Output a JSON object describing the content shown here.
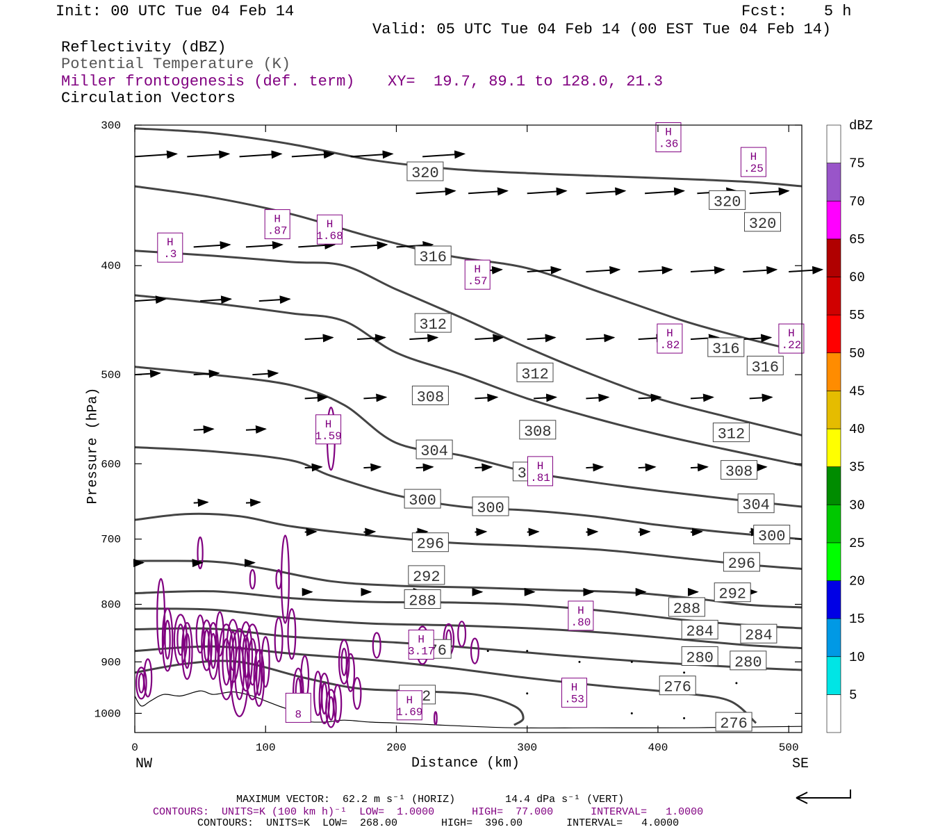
{
  "header": {
    "init": "Init: 00 UTC Tue 04 Feb 14",
    "fcst": "Fcst:    5 h",
    "valid": "Valid: 05 UTC Tue 04 Feb 14 (00 EST Tue 04 Feb 14)",
    "field1": "Reflectivity (dBZ)",
    "field2": "Potential Temperature (K)",
    "field3": "Miller frontogenesis (def. term)",
    "xy": "XY=  19.7, 89.1 to 128.0, 21.3",
    "field4": "Circulation Vectors"
  },
  "colors": {
    "theta": "#444444",
    "fronto": "#800080",
    "vector": "#000000"
  },
  "chart_data": {
    "type": "line",
    "xlabel": "Distance (km)",
    "ylabel": "Pressure (hPa)",
    "xlim": [
      0,
      510
    ],
    "ylim": [
      1040,
      300
    ],
    "y_scale": "log",
    "x_ticks": [
      0,
      100,
      200,
      300,
      400,
      500
    ],
    "x_tick_labels": [
      "0",
      "100",
      "200",
      "300",
      "400",
      "500"
    ],
    "y_ticks": [
      300,
      400,
      500,
      600,
      700,
      800,
      900,
      1000
    ],
    "y_tick_labels": [
      "300",
      "400",
      "500",
      "600",
      "700",
      "800",
      "900",
      "1000"
    ],
    "left_end_label": "NW",
    "right_end_label": "SE",
    "theta_series": [
      {
        "theta": 320,
        "points": [
          [
            0,
            302
          ],
          [
            60,
            305
          ],
          [
            120,
            312
          ],
          [
            180,
            322
          ],
          [
            240,
            328
          ],
          [
            300,
            331
          ],
          [
            360,
            333
          ],
          [
            420,
            335
          ],
          [
            470,
            337
          ],
          [
            510,
            340
          ]
        ]
      },
      {
        "theta": 316,
        "points": [
          [
            0,
            340
          ],
          [
            60,
            348
          ],
          [
            120,
            360
          ],
          [
            180,
            377
          ],
          [
            240,
            392
          ],
          [
            300,
            402
          ],
          [
            360,
            424
          ],
          [
            420,
            448
          ],
          [
            470,
            465
          ],
          [
            510,
            477
          ]
        ]
      },
      {
        "theta": 312,
        "points": [
          [
            0,
            388
          ],
          [
            60,
            392
          ],
          [
            120,
            397
          ],
          [
            160,
            400
          ],
          [
            200,
            420
          ],
          [
            250,
            445
          ],
          [
            300,
            473
          ],
          [
            350,
            500
          ],
          [
            400,
            525
          ],
          [
            450,
            544
          ],
          [
            510,
            566
          ]
        ]
      },
      {
        "theta": 308,
        "points": [
          [
            0,
            425
          ],
          [
            60,
            432
          ],
          [
            120,
            441
          ],
          [
            160,
            448
          ],
          [
            200,
            478
          ],
          [
            250,
            500
          ],
          [
            300,
            525
          ],
          [
            350,
            546
          ],
          [
            400,
            565
          ],
          [
            450,
            582
          ],
          [
            510,
            602
          ]
        ]
      },
      {
        "theta": 304,
        "points": [
          [
            0,
            492
          ],
          [
            60,
            500
          ],
          [
            120,
            511
          ],
          [
            160,
            532
          ],
          [
            200,
            575
          ],
          [
            250,
            590
          ],
          [
            300,
            610
          ],
          [
            350,
            623
          ],
          [
            400,
            634
          ],
          [
            450,
            644
          ],
          [
            510,
            655
          ]
        ]
      },
      {
        "theta": 300,
        "points": [
          [
            0,
            580
          ],
          [
            60,
            585
          ],
          [
            120,
            596
          ],
          [
            150,
            615
          ],
          [
            200,
            640
          ],
          [
            250,
            655
          ],
          [
            300,
            660
          ],
          [
            350,
            668
          ],
          [
            400,
            680
          ],
          [
            450,
            690
          ],
          [
            510,
            700
          ]
        ]
      },
      {
        "theta": 296,
        "points": [
          [
            0,
            673
          ],
          [
            40,
            665
          ],
          [
            80,
            668
          ],
          [
            120,
            682
          ],
          [
            180,
            695
          ],
          [
            240,
            705
          ],
          [
            300,
            710
          ],
          [
            360,
            716
          ],
          [
            420,
            728
          ],
          [
            470,
            738
          ],
          [
            510,
            744
          ]
        ]
      },
      {
        "theta": 292,
        "points": [
          [
            0,
            732
          ],
          [
            60,
            733
          ],
          [
            100,
            744
          ],
          [
            150,
            763
          ],
          [
            200,
            770
          ],
          [
            260,
            773
          ],
          [
            320,
            777
          ],
          [
            380,
            781
          ],
          [
            430,
            791
          ],
          [
            470,
            801
          ],
          [
            510,
            805
          ]
        ]
      },
      {
        "theta": 288,
        "points": [
          [
            0,
            782
          ],
          [
            60,
            779
          ],
          [
            120,
            790
          ],
          [
            180,
            796
          ],
          [
            240,
            797
          ],
          [
            300,
            801
          ],
          [
            360,
            811
          ],
          [
            420,
            826
          ],
          [
            470,
            835
          ],
          [
            510,
            840
          ]
        ]
      },
      {
        "theta": 284,
        "points": [
          [
            0,
            807
          ],
          [
            60,
            809
          ],
          [
            120,
            823
          ],
          [
            180,
            832
          ],
          [
            240,
            835
          ],
          [
            300,
            840
          ],
          [
            360,
            848
          ],
          [
            420,
            860
          ],
          [
            470,
            870
          ],
          [
            510,
            875
          ]
        ]
      },
      {
        "theta": 280,
        "points": [
          [
            0,
            842
          ],
          [
            60,
            841
          ],
          [
            120,
            855
          ],
          [
            200,
            865
          ],
          [
            260,
            875
          ],
          [
            320,
            887
          ],
          [
            380,
            898
          ],
          [
            440,
            907
          ],
          [
            480,
            912
          ],
          [
            510,
            915
          ]
        ]
      },
      {
        "theta": 276,
        "points": [
          [
            0,
            880
          ],
          [
            60,
            872
          ],
          [
            120,
            885
          ],
          [
            180,
            896
          ],
          [
            240,
            911
          ],
          [
            300,
            930
          ],
          [
            360,
            946
          ],
          [
            420,
            960
          ],
          [
            455,
            975
          ],
          [
            475,
            1020
          ]
        ]
      },
      {
        "theta": 272,
        "points": [
          [
            0,
            920
          ],
          [
            40,
            903
          ],
          [
            80,
            900
          ],
          [
            130,
            930
          ],
          [
            170,
            950
          ],
          [
            210,
            955
          ],
          [
            260,
            962
          ],
          [
            290,
            985
          ],
          [
            297,
            1010
          ],
          [
            290,
            1024
          ]
        ]
      }
    ],
    "theta_labels": [
      {
        "text": "320",
        "x": 222,
        "y": 330
      },
      {
        "text": "320",
        "x": 453,
        "y": 350
      },
      {
        "text": "320",
        "x": 480,
        "y": 366
      },
      {
        "text": "316",
        "x": 228,
        "y": 392
      },
      {
        "text": "316",
        "x": 452,
        "y": 473
      },
      {
        "text": "316",
        "x": 482,
        "y": 491
      },
      {
        "text": "312",
        "x": 228,
        "y": 450
      },
      {
        "text": "312",
        "x": 306,
        "y": 498
      },
      {
        "text": "312",
        "x": 456,
        "y": 563
      },
      {
        "text": "308",
        "x": 226,
        "y": 522
      },
      {
        "text": "308",
        "x": 308,
        "y": 560
      },
      {
        "text": "308",
        "x": 462,
        "y": 608
      },
      {
        "text": "304",
        "x": 229,
        "y": 583
      },
      {
        "text": "304",
        "x": 303,
        "y": 610
      },
      {
        "text": "304",
        "x": 475,
        "y": 651
      },
      {
        "text": "300",
        "x": 220,
        "y": 645
      },
      {
        "text": "300",
        "x": 272,
        "y": 655
      },
      {
        "text": "300",
        "x": 487,
        "y": 694
      },
      {
        "text": "296",
        "x": 226,
        "y": 705
      },
      {
        "text": "296",
        "x": 464,
        "y": 734
      },
      {
        "text": "292",
        "x": 223,
        "y": 754
      },
      {
        "text": "292",
        "x": 457,
        "y": 781
      },
      {
        "text": "288",
        "x": 220,
        "y": 792
      },
      {
        "text": "288",
        "x": 422,
        "y": 805
      },
      {
        "text": "284",
        "x": 432,
        "y": 843
      },
      {
        "text": "284",
        "x": 477,
        "y": 850
      },
      {
        "text": "280",
        "x": 432,
        "y": 890
      },
      {
        "text": "280",
        "x": 469,
        "y": 898
      },
      {
        "text": "276",
        "x": 228,
        "y": 877
      },
      {
        "text": "276",
        "x": 415,
        "y": 945
      },
      {
        "text": "276",
        "x": 458,
        "y": 1018
      },
      {
        "text": "272",
        "x": 216,
        "y": 963
      }
    ],
    "fronto_maxima": [
      {
        "label": "H",
        "value": ".36",
        "x": 408,
        "y": 308
      },
      {
        "label": "H",
        "value": ".25",
        "x": 473,
        "y": 324
      },
      {
        "label": "H",
        "value": ".87",
        "x": 109,
        "y": 368
      },
      {
        "label": "H",
        "value": "1.68",
        "x": 149,
        "y": 372
      },
      {
        "label": "H",
        "value": ".3",
        "x": 27,
        "y": 386
      },
      {
        "label": "H",
        "value": ".57",
        "x": 262,
        "y": 408
      },
      {
        "label": "H",
        "value": ".82",
        "x": 409,
        "y": 465
      },
      {
        "label": "H",
        "value": ".22",
        "x": 502,
        "y": 465
      },
      {
        "label": "H",
        "value": "1.59",
        "x": 148,
        "y": 560
      },
      {
        "label": "H",
        "value": ".81",
        "x": 310,
        "y": 610
      },
      {
        "label": "H",
        "value": ".80",
        "x": 341,
        "y": 820
      },
      {
        "label": "H",
        "value": "3.17",
        "x": 219,
        "y": 870
      },
      {
        "label": "H",
        "value": ".53",
        "x": 336,
        "y": 960
      },
      {
        "label": "H",
        "value": "1.69",
        "x": 210,
        "y": 985
      },
      {
        "label": "",
        "value": "8",
        "x": 125,
        "y": 990
      }
    ],
    "vector_rows": [
      {
        "p": 320,
        "x": [
          0,
          40,
          80,
          120,
          165,
          220
        ]
      },
      {
        "p": 345,
        "x": [
          215,
          255,
          300,
          345,
          390,
          430,
          470
        ]
      },
      {
        "p": 385,
        "x": [
          45,
          85,
          125,
          165,
          200
        ]
      },
      {
        "p": 405,
        "x": [
          255,
          300,
          345,
          385,
          425,
          465,
          500
        ]
      },
      {
        "p": 430,
        "x": [
          0,
          50,
          95
        ]
      },
      {
        "p": 465,
        "x": [
          130,
          170,
          210,
          260,
          300,
          345,
          385,
          425,
          465
        ]
      },
      {
        "p": 500,
        "x": [
          0,
          45,
          90
        ]
      },
      {
        "p": 525,
        "x": [
          130,
          175,
          215,
          260,
          305,
          345,
          385,
          425,
          470
        ]
      },
      {
        "p": 560,
        "x": [
          45,
          85
        ]
      },
      {
        "p": 605,
        "x": [
          130,
          175,
          215,
          260,
          300,
          345,
          385,
          425,
          470
        ]
      },
      {
        "p": 650,
        "x": [
          45,
          85
        ]
      },
      {
        "p": 690,
        "x": [
          130,
          175,
          215,
          260,
          300,
          345,
          385,
          425,
          470
        ]
      },
      {
        "p": 735,
        "x": [
          0,
          45,
          85
        ]
      },
      {
        "p": 780,
        "x": [
          130,
          175,
          215,
          260,
          300,
          345,
          385,
          425,
          470
        ]
      }
    ],
    "colorbar": {
      "title": "dBZ",
      "levels": [
        "5",
        "10",
        "15",
        "20",
        "25",
        "30",
        "35",
        "40",
        "45",
        "50",
        "55",
        "60",
        "65",
        "70",
        "75"
      ],
      "colors": [
        "#ffffff",
        "#00e5e5",
        "#0099e5",
        "#0000e5",
        "#00ff00",
        "#00c800",
        "#008c00",
        "#ffff00",
        "#e5bc00",
        "#ff8c00",
        "#ff0000",
        "#d00000",
        "#b00000",
        "#ff00ff",
        "#9955c9",
        "#ffffff"
      ]
    }
  },
  "footer": {
    "line1": "MAXIMUM VECTOR:  62.2 m s⁻¹ (HORIZ)        14.4 dPa s⁻¹ (VERT)",
    "line2": "CONTOURS:  UNITS=K (100 km h)⁻¹  LOW=  1.0000      HIGH=  77.000      INTERVAL=   1.0000",
    "line3": "CONTOURS:  UNITS=K  LOW=  268.00       HIGH=  396.00       INTERVAL=   4.0000"
  }
}
